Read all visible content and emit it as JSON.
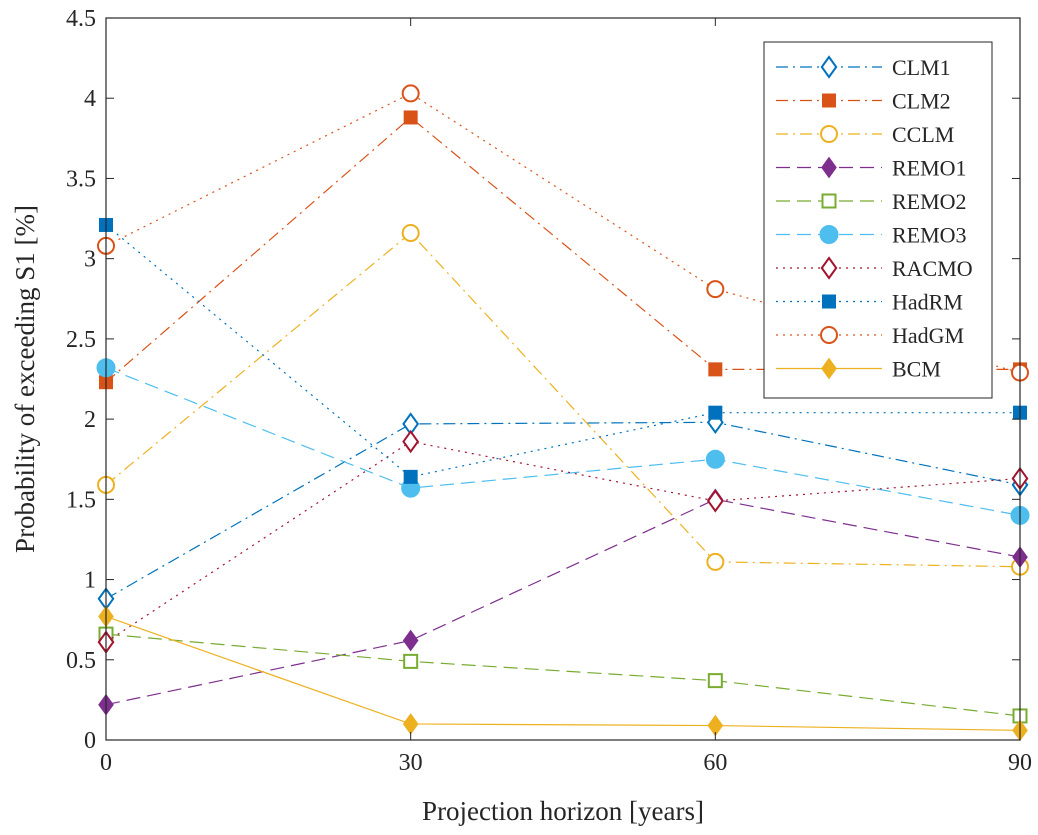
{
  "chart_data": {
    "type": "line",
    "xlabel": "Projection horizon [years]",
    "ylabel": "Probability of exceeding S1 [%]",
    "x": [
      0,
      30,
      60,
      90
    ],
    "xlim": [
      0,
      90
    ],
    "ylim": [
      0,
      4.5
    ],
    "x_ticks": [
      "0",
      "30",
      "60",
      "90"
    ],
    "y_ticks": [
      "0",
      "0.5",
      "1",
      "1.5",
      "2",
      "2.5",
      "3",
      "3.5",
      "4",
      "4.5"
    ],
    "grid": false,
    "legend_position": "top-right",
    "series": [
      {
        "name": "CLM1",
        "values": [
          0.88,
          1.97,
          1.98,
          1.59
        ],
        "color": "#0072BD",
        "line": "dashdot",
        "marker": "diamond",
        "filled": false
      },
      {
        "name": "CLM2",
        "values": [
          2.23,
          3.88,
          2.31,
          2.31
        ],
        "color": "#D95319",
        "line": "dashdot",
        "marker": "square",
        "filled": true
      },
      {
        "name": "CCLM",
        "values": [
          1.59,
          3.16,
          1.11,
          1.08
        ],
        "color": "#EDB120",
        "line": "dashdot",
        "marker": "circle",
        "filled": false
      },
      {
        "name": "REMO1",
        "values": [
          0.22,
          0.62,
          1.5,
          1.14
        ],
        "color": "#7E2F8E",
        "line": "dashed",
        "marker": "diamond",
        "filled": true
      },
      {
        "name": "REMO2",
        "values": [
          0.66,
          0.49,
          0.37,
          0.15
        ],
        "color": "#77AC30",
        "line": "dashed",
        "marker": "square",
        "filled": false
      },
      {
        "name": "REMO3",
        "values": [
          2.32,
          1.57,
          1.75,
          1.4
        ],
        "color": "#4DBEEE",
        "line": "dashed",
        "marker": "circle",
        "filled": true
      },
      {
        "name": "RACMO",
        "values": [
          0.61,
          1.86,
          1.49,
          1.63
        ],
        "color": "#A2142F",
        "line": "dotted",
        "marker": "diamond",
        "filled": false
      },
      {
        "name": "HadRM",
        "values": [
          3.21,
          1.64,
          2.04,
          2.04
        ],
        "color": "#0072BD",
        "line": "dotted",
        "marker": "square",
        "filled": true
      },
      {
        "name": "HadGM",
        "values": [
          3.08,
          4.03,
          2.81,
          2.29
        ],
        "color": "#D95319",
        "line": "dotted",
        "marker": "circle",
        "filled": false
      },
      {
        "name": "BCM",
        "values": [
          0.77,
          0.1,
          0.09,
          0.06
        ],
        "color": "#EDB120",
        "line": "solid",
        "marker": "diamond",
        "filled": true
      }
    ]
  }
}
